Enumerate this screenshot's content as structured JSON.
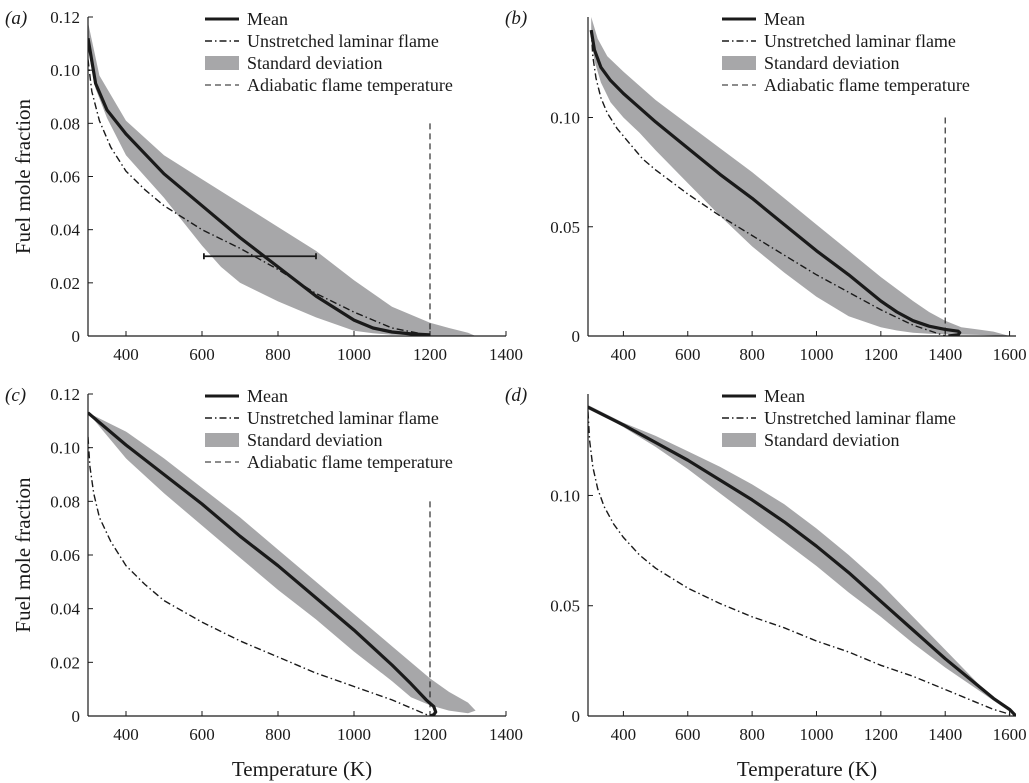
{
  "chart_data": [
    {
      "panel": "(a)",
      "type": "line",
      "xlabel": "",
      "ylabel": "Fuel mole fraction",
      "xlim": [
        300,
        1400
      ],
      "ylim": [
        0,
        0.12
      ],
      "xticks": [
        {
          "value": 400,
          "label": "400"
        },
        {
          "value": 600,
          "label": "600"
        },
        {
          "value": 800,
          "label": "800"
        },
        {
          "value": 1000,
          "label": "1000"
        },
        {
          "value": 1200,
          "label": "1200"
        },
        {
          "value": 1400,
          "label": "1400"
        }
      ],
      "yticks": [
        {
          "value": 0,
          "label": "0"
        },
        {
          "value": 0.02,
          "label": "0.02"
        },
        {
          "value": 0.04,
          "label": "0.04"
        },
        {
          "value": 0.06,
          "label": "0.06"
        },
        {
          "value": 0.08,
          "label": "0.08"
        },
        {
          "value": 0.1,
          "label": "0.10"
        },
        {
          "value": 0.12,
          "label": "0.12"
        }
      ],
      "legend": [
        {
          "key": "mean",
          "label": "Mean"
        },
        {
          "key": "laminar",
          "label": "Unstretched laminar flame"
        },
        {
          "key": "std",
          "label": "Standard deviation"
        },
        {
          "key": "adiabatic",
          "label": "Adiabatic flame temperature"
        }
      ],
      "legend_placement": "top-right",
      "series": {
        "mean": {
          "x": [
            300,
            320,
            350,
            400,
            500,
            600,
            700,
            800,
            900,
            1000,
            1050,
            1100,
            1150,
            1200
          ],
          "y": [
            0.112,
            0.095,
            0.085,
            0.076,
            0.061,
            0.049,
            0.037,
            0.026,
            0.015,
            0.006,
            0.003,
            0.0015,
            0.0008,
            0.0004
          ]
        },
        "laminar": {
          "x": [
            300,
            310,
            330,
            360,
            400,
            450,
            500,
            600,
            700,
            800,
            900,
            1000,
            1100,
            1200
          ],
          "y": [
            0.104,
            0.092,
            0.081,
            0.071,
            0.062,
            0.055,
            0.049,
            0.04,
            0.033,
            0.025,
            0.016,
            0.009,
            0.003,
            0.0002
          ]
        },
        "std_upper": {
          "x": [
            300,
            330,
            400,
            500,
            600,
            700,
            800,
            900,
            1000,
            1050,
            1100,
            1200,
            1250,
            1300,
            1320
          ],
          "y": [
            0.118,
            0.098,
            0.081,
            0.068,
            0.059,
            0.05,
            0.041,
            0.032,
            0.021,
            0.016,
            0.011,
            0.005,
            0.003,
            0.0012,
            0
          ]
        },
        "std_lower": {
          "x": [
            300,
            320,
            350,
            400,
            500,
            550,
            600,
            650,
            700,
            800,
            900,
            1000,
            1050,
            1100,
            1200,
            1320
          ],
          "y": [
            0.108,
            0.093,
            0.082,
            0.068,
            0.052,
            0.043,
            0.034,
            0.026,
            0.02,
            0.013,
            0.007,
            0.002,
            0.001,
            0.0005,
            0.0002,
            0
          ]
        },
        "adiabatic": {
          "x": 1200,
          "y_top": 0.08
        },
        "errorbar": {
          "x_min": 605,
          "x_max": 900,
          "y": 0.03
        }
      }
    },
    {
      "panel": "(b)",
      "type": "line",
      "xlabel": "",
      "ylabel": "",
      "xlim": [
        290,
        1620
      ],
      "ylim": [
        0,
        0.146
      ],
      "xticks": [
        {
          "value": 400,
          "label": "400"
        },
        {
          "value": 600,
          "label": "600"
        },
        {
          "value": 800,
          "label": "800"
        },
        {
          "value": 1000,
          "label": "1000"
        },
        {
          "value": 1200,
          "label": "1200"
        },
        {
          "value": 1400,
          "label": "1400"
        },
        {
          "value": 1600,
          "label": "1600"
        }
      ],
      "yticks": [
        {
          "value": 0,
          "label": "0"
        },
        {
          "value": 0.05,
          "label": "0.05"
        },
        {
          "value": 0.1,
          "label": "0.10"
        }
      ],
      "legend": [
        {
          "key": "mean",
          "label": "Mean"
        },
        {
          "key": "laminar",
          "label": "Unstretched laminar flame"
        },
        {
          "key": "std",
          "label": "Standard deviation"
        },
        {
          "key": "adiabatic",
          "label": "Adiabatic flame temperature"
        }
      ],
      "legend_placement": "top-right",
      "series": {
        "mean": {
          "x": [
            300,
            310,
            330,
            360,
            400,
            500,
            600,
            700,
            800,
            900,
            1000,
            1100,
            1200,
            1250,
            1300,
            1350,
            1400,
            1440,
            1445,
            1440,
            1410
          ],
          "y": [
            0.14,
            0.131,
            0.123,
            0.117,
            0.111,
            0.098,
            0.086,
            0.074,
            0.063,
            0.051,
            0.039,
            0.028,
            0.016,
            0.011,
            0.007,
            0.0045,
            0.003,
            0.0022,
            0.0015,
            0.0005,
            0
          ]
        },
        "laminar": {
          "x": [
            300,
            305,
            315,
            330,
            350,
            380,
            420,
            460,
            500,
            600,
            700,
            800,
            900,
            1000,
            1100,
            1200,
            1300,
            1400
          ],
          "y": [
            0.14,
            0.128,
            0.118,
            0.109,
            0.102,
            0.095,
            0.088,
            0.081,
            0.076,
            0.065,
            0.055,
            0.046,
            0.037,
            0.028,
            0.02,
            0.012,
            0.005,
            0
          ]
        },
        "std_upper": {
          "x": [
            300,
            320,
            350,
            400,
            500,
            600,
            700,
            800,
            900,
            1000,
            1100,
            1200,
            1300,
            1350,
            1400,
            1450,
            1500,
            1550,
            1600
          ],
          "y": [
            0.146,
            0.136,
            0.128,
            0.121,
            0.108,
            0.097,
            0.086,
            0.075,
            0.063,
            0.051,
            0.039,
            0.027,
            0.016,
            0.011,
            0.007,
            0.004,
            0.003,
            0.002,
            0
          ]
        },
        "std_lower": {
          "x": [
            300,
            310,
            330,
            360,
            400,
            450,
            500,
            600,
            700,
            800,
            900,
            1000,
            1100,
            1200,
            1250,
            1300,
            1350,
            1400,
            1500,
            1600
          ],
          "y": [
            0.138,
            0.126,
            0.116,
            0.107,
            0.1,
            0.093,
            0.085,
            0.07,
            0.055,
            0.041,
            0.029,
            0.018,
            0.009,
            0.004,
            0.0025,
            0.0015,
            0.001,
            0.0008,
            0.0005,
            0
          ]
        },
        "adiabatic": {
          "x": 1400,
          "y_top": 0.1
        }
      }
    },
    {
      "panel": "(c)",
      "type": "line",
      "xlabel": "Temperature (K)",
      "ylabel": "Fuel mole fraction",
      "xlim": [
        300,
        1400
      ],
      "ylim": [
        0,
        0.12
      ],
      "xticks": [
        {
          "value": 400,
          "label": "400"
        },
        {
          "value": 600,
          "label": "600"
        },
        {
          "value": 800,
          "label": "800"
        },
        {
          "value": 1000,
          "label": "1000"
        },
        {
          "value": 1200,
          "label": "1200"
        },
        {
          "value": 1400,
          "label": "1400"
        }
      ],
      "yticks": [
        {
          "value": 0,
          "label": "0"
        },
        {
          "value": 0.02,
          "label": "0.02"
        },
        {
          "value": 0.04,
          "label": "0.04"
        },
        {
          "value": 0.06,
          "label": "0.06"
        },
        {
          "value": 0.08,
          "label": "0.08"
        },
        {
          "value": 0.1,
          "label": "0.10"
        },
        {
          "value": 0.12,
          "label": "0.12"
        }
      ],
      "legend": [
        {
          "key": "mean",
          "label": "Mean"
        },
        {
          "key": "laminar",
          "label": "Unstretched laminar flame"
        },
        {
          "key": "std",
          "label": "Standard deviation"
        },
        {
          "key": "adiabatic",
          "label": "Adiabatic flame temperature"
        }
      ],
      "legend_placement": "top-right",
      "series": {
        "mean": {
          "x": [
            300,
            400,
            500,
            600,
            700,
            800,
            900,
            1000,
            1100,
            1150,
            1190,
            1210,
            1215,
            1210,
            1200
          ],
          "y": [
            0.113,
            0.101,
            0.09,
            0.079,
            0.067,
            0.056,
            0.044,
            0.032,
            0.019,
            0.012,
            0.006,
            0.0035,
            0.0015,
            0.0005,
            0
          ]
        },
        "laminar": {
          "x": [
            300,
            305,
            315,
            330,
            360,
            400,
            450,
            500,
            600,
            700,
            800,
            900,
            1000,
            1100,
            1150,
            1200
          ],
          "y": [
            0.104,
            0.093,
            0.083,
            0.074,
            0.065,
            0.056,
            0.049,
            0.043,
            0.035,
            0.028,
            0.022,
            0.016,
            0.011,
            0.006,
            0.003,
            0
          ]
        },
        "std_upper": {
          "x": [
            300,
            400,
            500,
            600,
            700,
            800,
            900,
            1000,
            1100,
            1200,
            1250,
            1300,
            1320
          ],
          "y": [
            0.113,
            0.106,
            0.096,
            0.085,
            0.074,
            0.062,
            0.05,
            0.038,
            0.026,
            0.014,
            0.009,
            0.005,
            0.002
          ]
        },
        "std_lower": {
          "x": [
            300,
            400,
            500,
            600,
            700,
            800,
            900,
            1000,
            1100,
            1150,
            1200,
            1250,
            1300,
            1320
          ],
          "y": [
            0.113,
            0.096,
            0.083,
            0.071,
            0.059,
            0.047,
            0.036,
            0.024,
            0.013,
            0.007,
            0.004,
            0.002,
            0.001,
            0.002
          ]
        },
        "adiabatic": {
          "x": 1200,
          "y_top": 0.08
        }
      }
    },
    {
      "panel": "(d)",
      "type": "line",
      "xlabel": "Temperature (K)",
      "ylabel": "",
      "xlim": [
        290,
        1620
      ],
      "ylim": [
        0,
        0.146
      ],
      "xticks": [
        {
          "value": 400,
          "label": "400"
        },
        {
          "value": 600,
          "label": "600"
        },
        {
          "value": 800,
          "label": "800"
        },
        {
          "value": 1000,
          "label": "1000"
        },
        {
          "value": 1200,
          "label": "1200"
        },
        {
          "value": 1400,
          "label": "1400"
        },
        {
          "value": 1600,
          "label": "1600"
        }
      ],
      "yticks": [
        {
          "value": 0,
          "label": "0"
        },
        {
          "value": 0.05,
          "label": "0.05"
        },
        {
          "value": 0.1,
          "label": "0.10"
        }
      ],
      "legend": [
        {
          "key": "mean",
          "label": "Mean"
        },
        {
          "key": "laminar",
          "label": "Unstretched laminar flame"
        },
        {
          "key": "std",
          "label": "Standard deviation"
        }
      ],
      "legend_placement": "top-right",
      "series": {
        "mean": {
          "x": [
            290,
            400,
            500,
            600,
            700,
            800,
            900,
            1000,
            1100,
            1200,
            1300,
            1400,
            1500,
            1550,
            1600,
            1620
          ],
          "y": [
            0.14,
            0.132,
            0.124,
            0.116,
            0.107,
            0.098,
            0.088,
            0.077,
            0.065,
            0.052,
            0.039,
            0.026,
            0.014,
            0.008,
            0.003,
            0
          ]
        },
        "laminar": {
          "x": [
            290,
            295,
            305,
            320,
            340,
            370,
            400,
            450,
            500,
            600,
            700,
            800,
            900,
            1000,
            1100,
            1200,
            1300,
            1400,
            1500,
            1550,
            1600,
            1620
          ],
          "y": [
            0.138,
            0.125,
            0.113,
            0.103,
            0.095,
            0.087,
            0.081,
            0.073,
            0.067,
            0.058,
            0.051,
            0.045,
            0.04,
            0.034,
            0.029,
            0.023,
            0.018,
            0.012,
            0.006,
            0.003,
            0.0008,
            0
          ]
        },
        "std_upper": {
          "x": [
            290,
            400,
            500,
            600,
            700,
            800,
            900,
            1000,
            1100,
            1200,
            1300,
            1400,
            1500,
            1550,
            1600,
            1620
          ],
          "y": [
            0.141,
            0.133,
            0.127,
            0.12,
            0.113,
            0.105,
            0.096,
            0.085,
            0.073,
            0.06,
            0.045,
            0.03,
            0.015,
            0.008,
            0.003,
            0
          ]
        },
        "std_lower": {
          "x": [
            290,
            400,
            500,
            600,
            700,
            800,
            900,
            1000,
            1100,
            1200,
            1300,
            1400,
            1500,
            1550,
            1600,
            1620
          ],
          "y": [
            0.14,
            0.131,
            0.122,
            0.112,
            0.101,
            0.09,
            0.079,
            0.068,
            0.056,
            0.045,
            0.033,
            0.022,
            0.012,
            0.007,
            0.002,
            0
          ]
        }
      }
    }
  ]
}
